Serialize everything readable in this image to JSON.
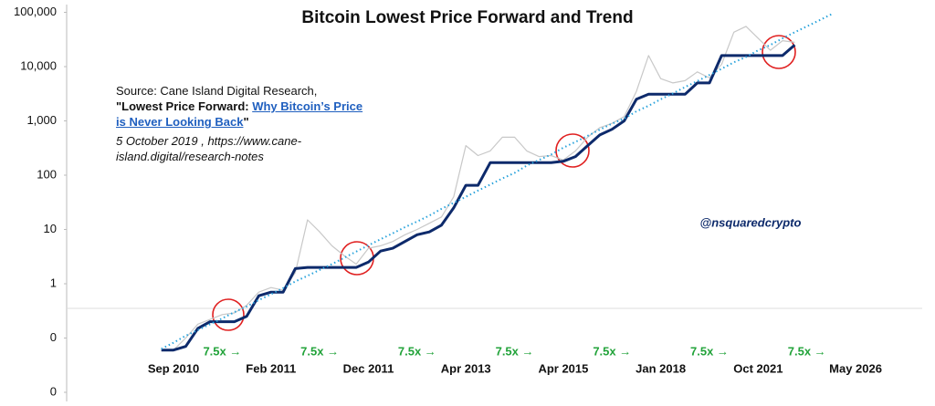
{
  "chart_data": {
    "type": "line",
    "title": "Bitcoin Lowest Price Forward and Trend",
    "y_scale": "log",
    "ylim": [
      0.01,
      100000
    ],
    "yticks": [
      {
        "value": 100000,
        "label": "100,000"
      },
      {
        "value": 10000,
        "label": "10,000"
      },
      {
        "value": 1000,
        "label": "1,000"
      },
      100,
      10,
      1,
      {
        "value": 0.1,
        "label": "0"
      },
      {
        "value": 0.01,
        "label": "0"
      }
    ],
    "categories": [
      null,
      "Sep 2010",
      null,
      null,
      null,
      null,
      null,
      null,
      null,
      "Feb 2011",
      null,
      null,
      null,
      null,
      null,
      null,
      null,
      "Dec 2011",
      null,
      null,
      null,
      null,
      null,
      null,
      null,
      "Apr 2013",
      null,
      null,
      null,
      null,
      null,
      null,
      null,
      "Apr 2015",
      null,
      null,
      null,
      null,
      null,
      null,
      null,
      "Jan 2018",
      null,
      null,
      null,
      null,
      null,
      null,
      null,
      "Oct 2021",
      null,
      null,
      null,
      null,
      null,
      null,
      null,
      "May 2026"
    ],
    "series": [
      {
        "color": "#c8c8c8",
        "width": 1.2,
        "dash": "none",
        "values": [
          0.06,
          0.06,
          0.1,
          0.18,
          0.22,
          0.27,
          0.29,
          0.4,
          0.7,
          0.85,
          0.76,
          1.6,
          15,
          9,
          5,
          3.3,
          2.3,
          4.5,
          5,
          6,
          8,
          10,
          13,
          17,
          40,
          350,
          230,
          280,
          500,
          500,
          280,
          220,
          230,
          190,
          280,
          500,
          750,
          900,
          1200,
          3500,
          16000,
          6000,
          5000,
          5500,
          8000,
          6200,
          11000,
          43000,
          55000,
          33000,
          20000,
          30000,
          28000,
          null,
          null,
          null,
          null,
          null
        ]
      },
      {
        "color": "#0d2a6b",
        "width": 3,
        "dash": "none",
        "values": [
          0.06,
          0.06,
          0.07,
          0.15,
          0.2,
          0.2,
          0.2,
          0.25,
          0.6,
          0.7,
          0.7,
          1.9,
          2,
          2,
          2,
          2,
          2,
          2.5,
          4,
          4.5,
          6,
          8,
          9,
          12,
          25,
          65,
          65,
          170,
          170,
          170,
          170,
          170,
          170,
          180,
          220,
          350,
          550,
          700,
          1000,
          2500,
          3100,
          3100,
          3100,
          3100,
          5000,
          5000,
          16000,
          16000,
          16000,
          16000,
          16000,
          16000,
          25000,
          null,
          null,
          null,
          null,
          null
        ]
      },
      {
        "color": "#29a3dc",
        "width": 2,
        "dash": "1.5 3",
        "values": [
          0.063,
          0.082,
          0.11,
          0.14,
          0.18,
          0.23,
          0.3,
          0.38,
          0.5,
          0.64,
          0.83,
          1.1,
          1.4,
          1.8,
          2.3,
          3,
          3.9,
          5.1,
          6.6,
          8.5,
          11,
          14,
          18,
          24,
          31,
          40,
          52,
          67,
          87,
          110,
          150,
          190,
          240,
          320,
          410,
          530,
          690,
          890,
          1100,
          1500,
          1900,
          2500,
          3200,
          4200,
          5400,
          7000,
          9100,
          12000,
          15000,
          20000,
          25000,
          33000,
          43000,
          55000,
          71000,
          92000,
          null,
          null
        ]
      }
    ],
    "interval_labels": [
      "7.5x →",
      "7.5x →",
      "7.5x →",
      "7.5x →",
      "7.5x →",
      "7.5x →",
      "7.5x →"
    ],
    "source": {
      "line1": "Source: Cane Island Digital Research,",
      "quote_open": "\"Lowest Price Forward: ",
      "link1": "Why Bitcoin’s Price",
      "link2": "is Never Looking Back",
      "quote_close": "\"",
      "line4": "5 October 2019 , https://www.cane-",
      "line5": "island.digital/research-notes"
    },
    "watermark": "@nsquaredcrypto"
  }
}
